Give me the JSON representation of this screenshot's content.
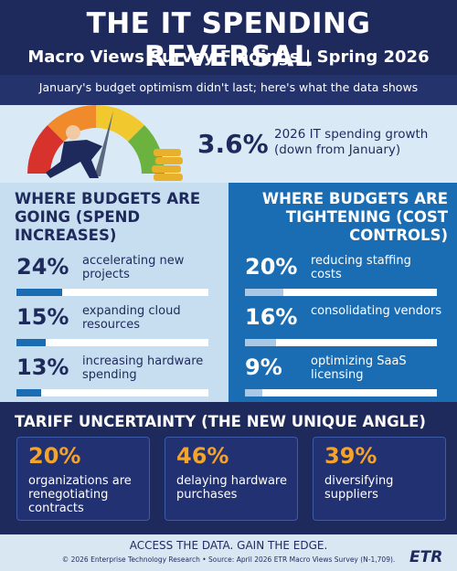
{
  "header": {
    "title": "THE IT SPENDING REVERSAL",
    "subtitle": "Macro Views Survey Findings | Spring 2026",
    "tagline": "January's budget optimism didn't last; here's what the data shows"
  },
  "hero": {
    "stat": "3.6%",
    "text": "2026 IT spending growth (down from January)"
  },
  "increases": {
    "title": "WHERE BUDGETS ARE GOING (SPEND INCREASES)",
    "items": [
      {
        "value": 24,
        "value_label": "24%",
        "text": "accelerating new projects"
      },
      {
        "value": 15,
        "value_label": "15%",
        "text": "expanding cloud resources"
      },
      {
        "value": 13,
        "value_label": "13%",
        "text": "increasing hardware spending"
      }
    ]
  },
  "tightening": {
    "title": "WHERE BUDGETS ARE TIGHTENING (COST CONTROLS)",
    "items": [
      {
        "value": 20,
        "value_label": "20%",
        "text": "reducing staffing costs"
      },
      {
        "value": 16,
        "value_label": "16%",
        "text": "consolidating vendors"
      },
      {
        "value": 9,
        "value_label": "9%",
        "text": "optimizing SaaS licensing"
      }
    ]
  },
  "tariff": {
    "title": "TARIFF UNCERTAINTY (THE NEW UNIQUE ANGLE)",
    "cards": [
      {
        "value": "20%",
        "text": "organizations are renegotiating contracts"
      },
      {
        "value": "46%",
        "text": "delaying hardware purchases"
      },
      {
        "value": "39%",
        "text": "diversifying suppliers"
      }
    ]
  },
  "footer": {
    "tagline": "ACCESS THE DATA. GAIN THE EDGE.",
    "source": "© 2026 Enterprise Technology Research • Source: April 2026 ETR Macro Views Survey (N-1,709).",
    "logo": "ETR"
  }
}
